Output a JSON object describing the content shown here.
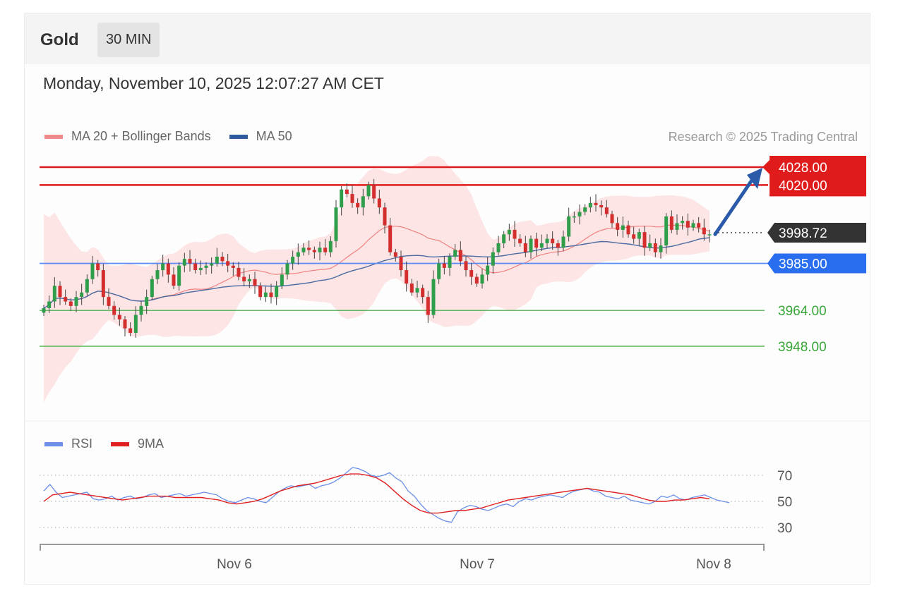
{
  "instrument": "Gold",
  "timeframe": "30 MIN",
  "datetime": "Monday, November 10, 2025 12:07:27 AM CET",
  "legend": {
    "bollinger": "MA 20 + Bollinger Bands",
    "ma50": "MA 50"
  },
  "credit": "Research © 2025 Trading Central",
  "rsi_legend": {
    "rsi": "RSI",
    "ma9": "9MA"
  },
  "colors": {
    "resistance": "#e01b1b",
    "support_key": "#2a6ef0",
    "support": "#37a637",
    "current": "#333333",
    "bullish": "#2f9e4a",
    "bearish": "#d42d2d",
    "band_fill": "#fde0e0",
    "ma20": "#f08080",
    "ma50": "#4a6aa0",
    "rsi": "#6b8fe8",
    "rsi_ma": "#e02020",
    "arrow": "#2a5aa8"
  },
  "chart_data": [
    {
      "type": "candlestick",
      "title": "Gold",
      "levels": [
        {
          "label": "4028.00",
          "value": 4028.0,
          "kind": "resistance"
        },
        {
          "label": "4020.00",
          "value": 4020.0,
          "kind": "resistance"
        },
        {
          "label": "3998.72",
          "value": 3998.72,
          "kind": "current"
        },
        {
          "label": "3985.00",
          "value": 3985.0,
          "kind": "pivot"
        },
        {
          "label": "3964.00",
          "value": 3964.0,
          "kind": "support"
        },
        {
          "label": "3948.00",
          "value": 3948.0,
          "kind": "support"
        }
      ],
      "x_labels": [
        "Nov 6",
        "Nov 7",
        "Nov 8"
      ],
      "ylim": [
        3910,
        4033
      ],
      "close": [
        3965,
        3968,
        3975,
        3970,
        3968,
        3966,
        3970,
        3972,
        3978,
        3985,
        3982,
        3970,
        3966,
        3962,
        3960,
        3956,
        3954,
        3962,
        3966,
        3970,
        3978,
        3982,
        3985,
        3980,
        3975,
        3984,
        3987,
        3985,
        3982,
        3983,
        3984,
        3985,
        3988,
        3986,
        3984,
        3983,
        3979,
        3977,
        3978,
        3975,
        3970,
        3972,
        3970,
        3975,
        3980,
        3985,
        3988,
        3990,
        3992,
        3991,
        3990,
        3992,
        3990,
        3995,
        4010,
        4018,
        4016,
        4012,
        4010,
        4015,
        4020,
        4014,
        4010,
        4002,
        3990,
        3988,
        3982,
        3976,
        3972,
        3974,
        3970,
        3962,
        3978,
        3985,
        3983,
        3988,
        3991,
        3986,
        3982,
        3979,
        3976,
        3980,
        3984,
        3990,
        3994,
        3998,
        4000,
        3996,
        3994,
        3990,
        3996,
        3992,
        3994,
        3996,
        3994,
        3992,
        3997,
        4006,
        4006,
        4008,
        4010,
        4012,
        4011,
        4010,
        4007,
        4003,
        4000,
        4002,
        3998,
        3996,
        3999,
        3992,
        3994,
        3990,
        3993,
        4006,
        4000,
        4003,
        4004,
        4001,
        4003,
        4001,
        3998,
        3998
      ],
      "rsi": [
        58,
        63,
        57,
        53,
        54,
        55,
        56,
        57,
        52,
        51,
        52,
        54,
        51,
        53,
        54,
        52,
        53,
        55,
        56,
        53,
        54,
        55,
        56,
        54,
        55,
        56,
        57,
        56,
        55,
        52,
        50,
        49,
        51,
        53,
        52,
        50,
        49,
        53,
        57,
        60,
        62,
        61,
        62,
        63,
        60,
        62,
        63,
        65,
        68,
        72,
        76,
        75,
        73,
        70,
        69,
        70,
        72,
        68,
        65,
        58,
        54,
        48,
        43,
        40,
        37,
        35,
        34,
        42,
        45,
        47,
        46,
        44,
        43,
        45,
        47,
        48,
        46,
        50,
        52,
        51,
        53,
        54,
        55,
        54,
        53,
        56,
        58,
        59,
        60,
        58,
        57,
        54,
        53,
        52,
        54,
        51,
        50,
        49,
        48,
        50,
        54,
        53,
        55,
        52,
        51,
        53,
        54,
        55,
        53,
        51,
        50,
        49
      ],
      "rsi_ma": [
        50,
        55,
        56,
        57,
        56,
        55,
        54,
        53,
        52,
        51,
        52,
        53,
        54,
        54,
        54,
        53,
        53,
        53,
        53,
        52,
        51,
        49,
        48,
        49,
        50,
        52,
        55,
        58,
        60,
        62,
        63,
        64,
        66,
        68,
        70,
        71,
        71,
        70,
        68,
        64,
        58,
        52,
        47,
        43,
        41,
        41,
        42,
        43,
        43,
        44,
        45,
        47,
        49,
        51,
        52,
        53,
        54,
        55,
        56,
        57,
        58,
        59,
        60,
        59,
        58,
        57,
        56,
        55,
        53,
        51,
        50,
        50,
        51,
        51,
        52,
        53,
        52
      ],
      "rsi_levels": [
        70,
        50,
        30
      ]
    }
  ]
}
